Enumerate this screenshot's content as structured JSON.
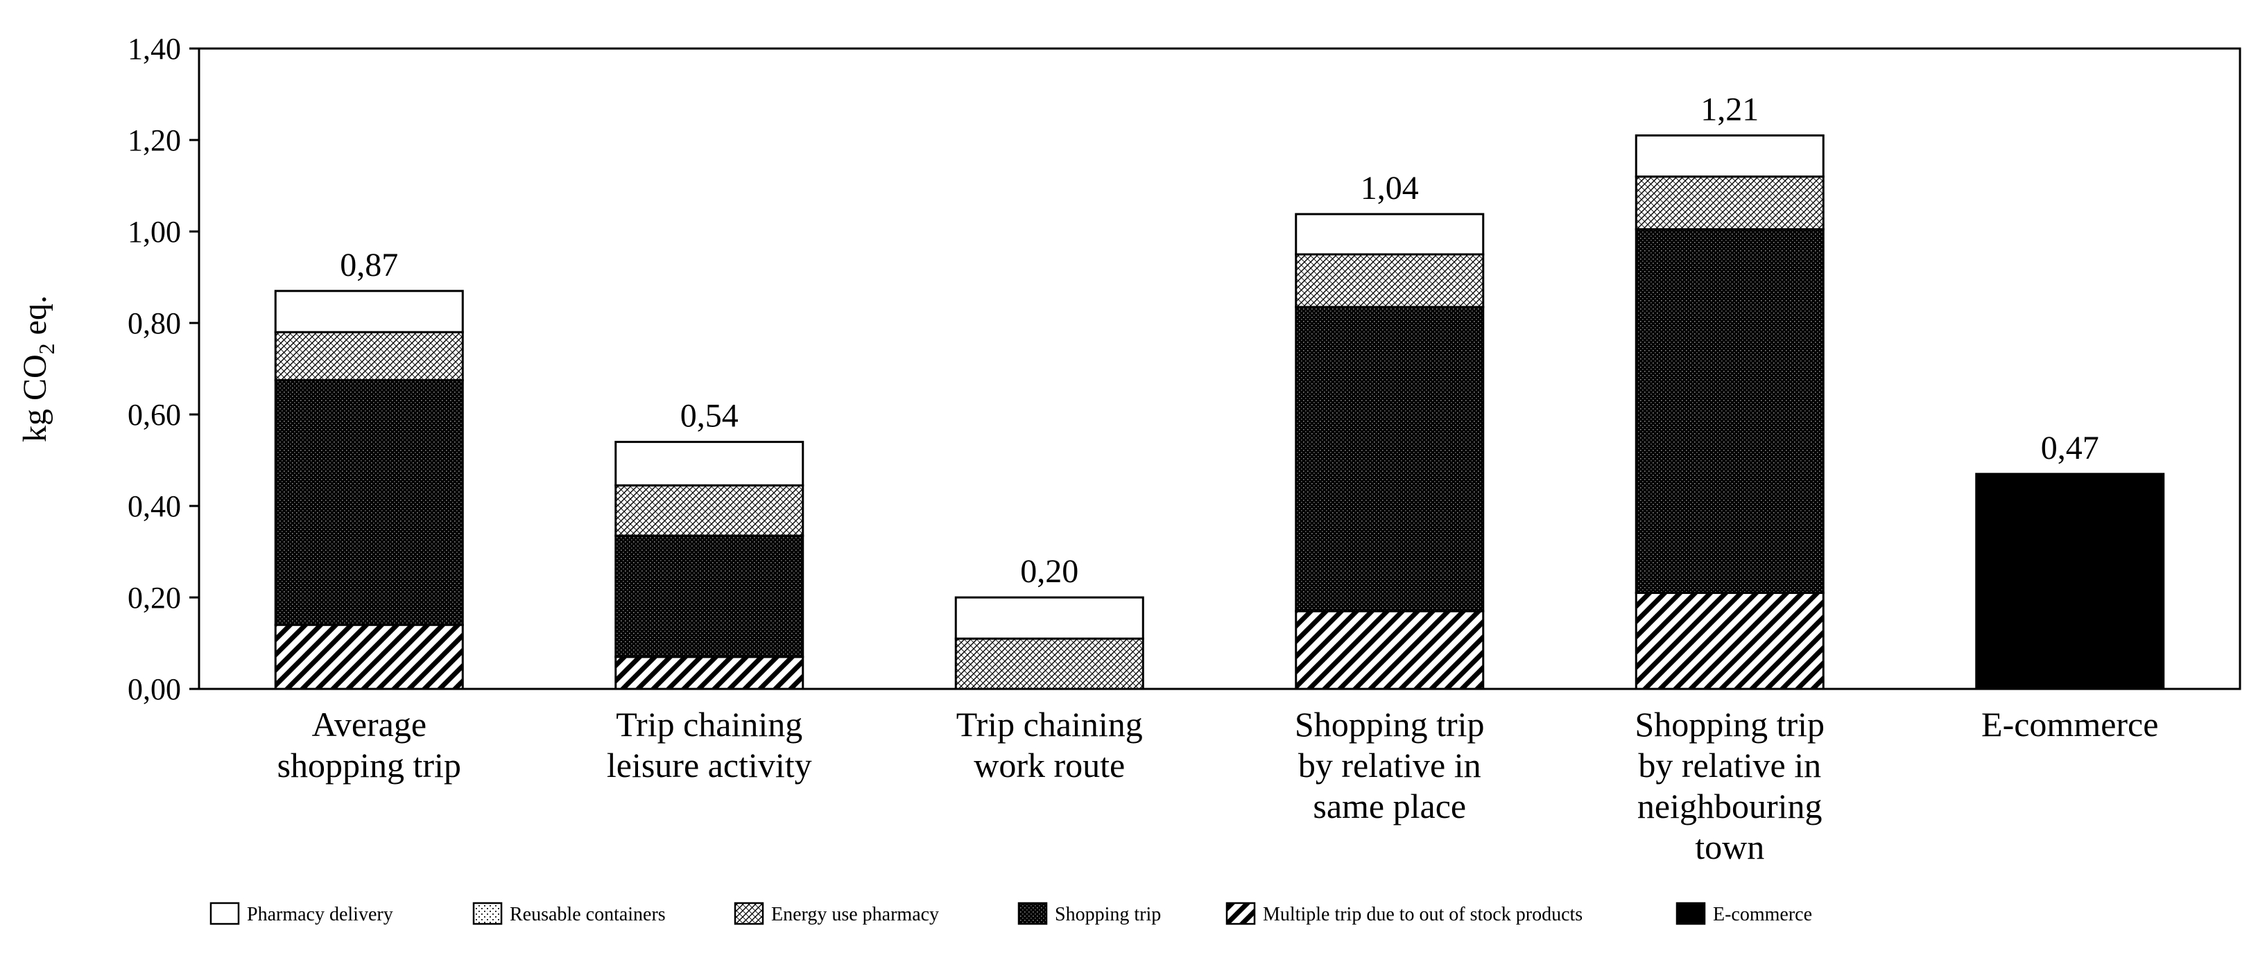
{
  "chart_data": {
    "type": "bar",
    "stacked": true,
    "ylabel": "kg CO₂ eq.",
    "ylabel_parts": {
      "base": "kg CO",
      "sub": "2",
      "after": " eq."
    },
    "ylim": [
      0,
      1.4
    ],
    "yticks": [
      "0,00",
      "0,20",
      "0,40",
      "0,60",
      "0,80",
      "1,00",
      "1,20",
      "1,40"
    ],
    "ytick_values": [
      0,
      0.2,
      0.4,
      0.6,
      0.8,
      1.0,
      1.2,
      1.4
    ],
    "grid": false,
    "legend_position": "bottom",
    "categories": [
      [
        "Average",
        "shopping trip"
      ],
      [
        "Trip chaining",
        "leisure activity"
      ],
      [
        "Trip chaining",
        "work route"
      ],
      [
        "Shopping trip",
        "by relative in",
        "same place"
      ],
      [
        "Shopping trip",
        "by relative in",
        "neighbouring",
        "town"
      ],
      [
        "E-commerce"
      ]
    ],
    "totals": [
      "0,87",
      "0,54",
      "0,20",
      "1,04",
      "1,21",
      "0,47"
    ],
    "series": [
      {
        "name": "Multiple trip due to out of stock products",
        "pattern": "diag",
        "values": [
          0.14,
          0.07,
          0,
          0.17,
          0.21,
          0
        ]
      },
      {
        "name": "Shopping trip",
        "pattern": "dots",
        "values": [
          0.535,
          0.265,
          0,
          0.665,
          0.795,
          0
        ]
      },
      {
        "name": "Energy use pharmacy",
        "pattern": "crosshatch",
        "values": [
          0.105,
          0.11,
          0.11,
          0.115,
          0.115,
          0
        ]
      },
      {
        "name": "Reusable containers",
        "pattern": "sparse-dots",
        "values": [
          0,
          0,
          0,
          0,
          0,
          0
        ]
      },
      {
        "name": "Pharmacy delivery",
        "pattern": "white",
        "values": [
          0.09,
          0.095,
          0.09,
          0.088,
          0.09,
          0
        ]
      },
      {
        "name": "E-commerce",
        "pattern": "black",
        "values": [
          0,
          0,
          0,
          0,
          0,
          0.47
        ]
      }
    ],
    "legend_order": [
      "Pharmacy delivery",
      "Reusable containers",
      "Energy use pharmacy",
      "Shopping trip",
      "Multiple trip due to out of stock products",
      "E-commerce"
    ]
  }
}
